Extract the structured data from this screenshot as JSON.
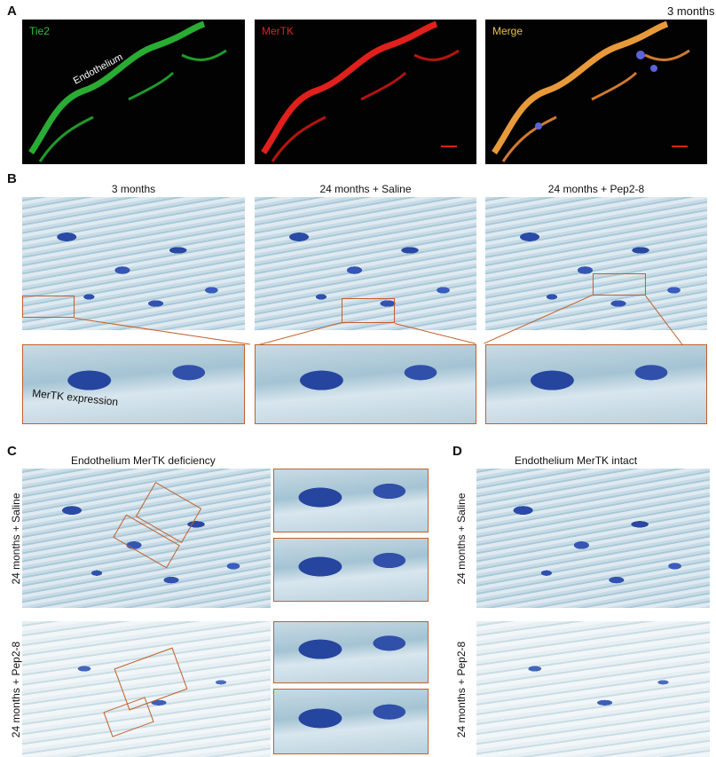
{
  "panel_a": {
    "label": "A",
    "timepoint": "3 months",
    "images": [
      {
        "channel": "Tie2",
        "color": "#2fbf3a",
        "annotation": "Endothelium"
      },
      {
        "channel": "MerTK",
        "color": "#e0201c"
      },
      {
        "channel": "Merge",
        "color": "#e8c24a"
      }
    ]
  },
  "panel_b": {
    "label": "B",
    "columns": [
      "3 months",
      "24 months + Saline",
      "24 months + Pep2-8"
    ],
    "inset_annotation": "MerTK expression"
  },
  "panel_c": {
    "label": "C",
    "title": "Endothelium MerTK deficiency",
    "rows": [
      "24 months + Saline",
      "24 months + Pep2-8"
    ]
  },
  "panel_d": {
    "label": "D",
    "title": "Endothelium MerTK intact",
    "rows": [
      "24 months + Saline",
      "24 months + Pep2-8"
    ]
  },
  "colors": {
    "zoom_box": "#c0612b",
    "stain_nuclei": "#2b4aa8",
    "stain_background": "#c7dbe6"
  }
}
